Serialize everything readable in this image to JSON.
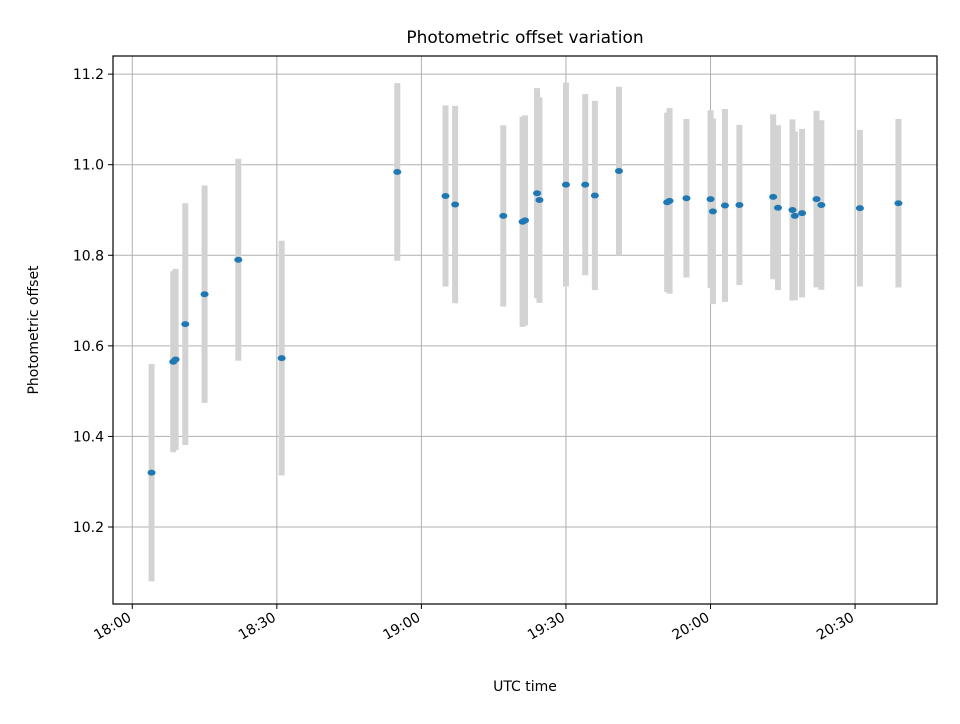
{
  "chart_data": {
    "type": "scatter",
    "title": "Photometric offset variation",
    "xlabel": "UTC time",
    "ylabel": "Photometric offset",
    "x_unit": "time (HH:MM)",
    "xlim": [
      "17:56",
      "20:47"
    ],
    "ylim": [
      10.03,
      11.24
    ],
    "xticks": [
      "18:00",
      "18:30",
      "19:00",
      "19:30",
      "20:00",
      "20:30"
    ],
    "yticks": [
      "10.2",
      "10.4",
      "10.6",
      "10.8",
      "11.0",
      "11.2"
    ],
    "grid": true,
    "legend": "none",
    "colors": {
      "point": "#1f77b4",
      "errorbar": "#d3d3d3",
      "grid": "#b0b0b0"
    },
    "series": [
      {
        "points": [
          {
            "x": "18:04",
            "y": 10.32,
            "yerr": 0.24
          },
          {
            "x": "18:08:30",
            "y": 10.565,
            "yerr": 0.2
          },
          {
            "x": "18:09",
            "y": 10.57,
            "yerr": 0.2
          },
          {
            "x": "18:11",
            "y": 10.648,
            "yerr": 0.267
          },
          {
            "x": "18:15",
            "y": 10.714,
            "yerr": 0.24
          },
          {
            "x": "18:22",
            "y": 10.79,
            "yerr": 0.223
          },
          {
            "x": "18:31",
            "y": 10.573,
            "yerr": 0.259
          },
          {
            "x": "18:55",
            "y": 10.984,
            "yerr": 0.196
          },
          {
            "x": "19:05",
            "y": 10.931,
            "yerr": 0.2
          },
          {
            "x": "19:07",
            "y": 10.912,
            "yerr": 0.218
          },
          {
            "x": "19:17",
            "y": 10.887,
            "yerr": 0.2
          },
          {
            "x": "19:21",
            "y": 10.874,
            "yerr": 0.232
          },
          {
            "x": "19:21:30",
            "y": 10.877,
            "yerr": 0.232
          },
          {
            "x": "19:24",
            "y": 10.937,
            "yerr": 0.232
          },
          {
            "x": "19:24:30",
            "y": 10.922,
            "yerr": 0.227
          },
          {
            "x": "19:30",
            "y": 10.956,
            "yerr": 0.225
          },
          {
            "x": "19:34",
            "y": 10.956,
            "yerr": 0.2
          },
          {
            "x": "19:36",
            "y": 10.932,
            "yerr": 0.209
          },
          {
            "x": "19:41",
            "y": 10.986,
            "yerr": 0.186
          },
          {
            "x": "19:51",
            "y": 10.917,
            "yerr": 0.198
          },
          {
            "x": "19:51:30",
            "y": 10.92,
            "yerr": 0.205
          },
          {
            "x": "19:55",
            "y": 10.926,
            "yerr": 0.175
          },
          {
            "x": "20:00",
            "y": 10.924,
            "yerr": 0.196
          },
          {
            "x": "20:00:30",
            "y": 10.897,
            "yerr": 0.205
          },
          {
            "x": "20:03",
            "y": 10.91,
            "yerr": 0.213
          },
          {
            "x": "20:06",
            "y": 10.911,
            "yerr": 0.177
          },
          {
            "x": "20:13",
            "y": 10.929,
            "yerr": 0.182
          },
          {
            "x": "20:14",
            "y": 10.905,
            "yerr": 0.182
          },
          {
            "x": "20:17",
            "y": 10.9,
            "yerr": 0.2
          },
          {
            "x": "20:17:30",
            "y": 10.887,
            "yerr": 0.186
          },
          {
            "x": "20:19",
            "y": 10.893,
            "yerr": 0.186
          },
          {
            "x": "20:22",
            "y": 10.924,
            "yerr": 0.195
          },
          {
            "x": "20:23",
            "y": 10.911,
            "yerr": 0.187
          },
          {
            "x": "20:31",
            "y": 10.904,
            "yerr": 0.173
          },
          {
            "x": "20:39",
            "y": 10.915,
            "yerr": 0.186
          }
        ]
      }
    ]
  }
}
